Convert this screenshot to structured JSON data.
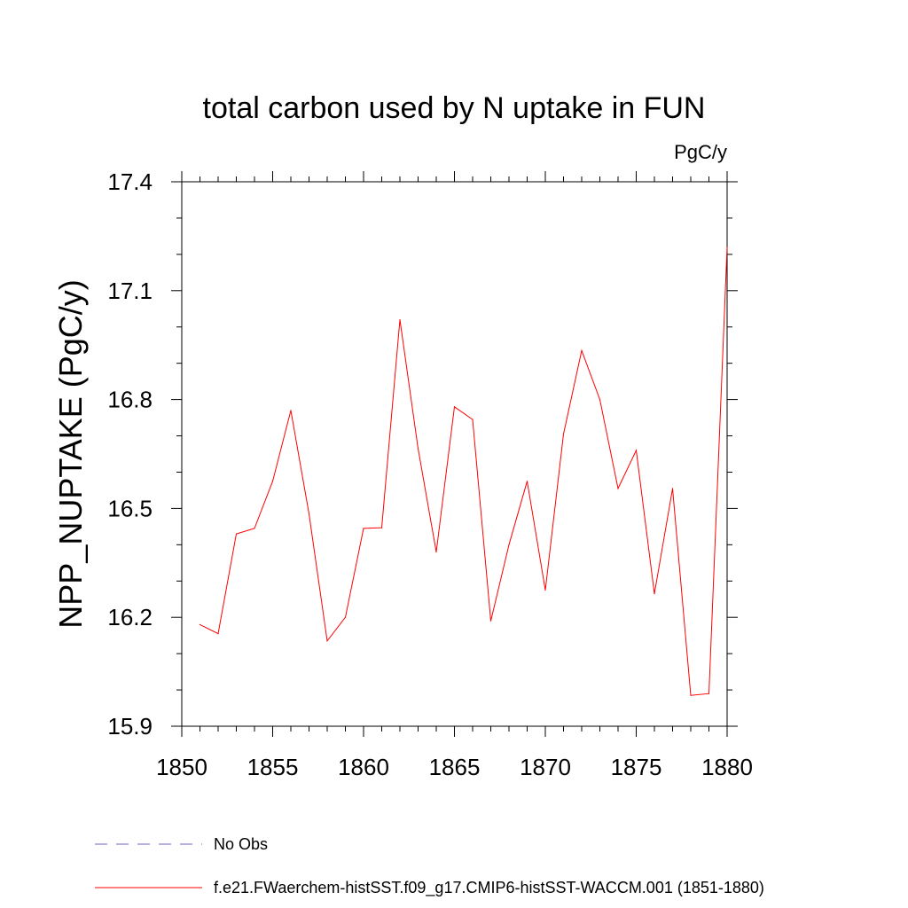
{
  "chart_data": {
    "type": "line",
    "title": "total carbon used by N uptake in FUN",
    "units_label": "PgC/y",
    "ylabel": "NPP_NUPTAKE  (PgC/y)",
    "xlabel": "",
    "xlim": [
      1850,
      1880
    ],
    "ylim": [
      15.9,
      17.4
    ],
    "x_ticks": [
      1850,
      1855,
      1860,
      1865,
      1870,
      1875,
      1880
    ],
    "x_tick_labels": [
      "1850",
      "1855",
      "1860",
      "1865",
      "1870",
      "1875",
      "1880"
    ],
    "y_ticks": [
      15.9,
      16.2,
      16.5,
      16.8,
      17.1,
      17.4
    ],
    "y_tick_labels": [
      "15.9",
      "16.2",
      "16.5",
      "16.8",
      "17.1",
      "17.4"
    ],
    "grid": false,
    "legend_position": "bottom",
    "series": [
      {
        "name": "f.e21.FWaerchem-histSST.f09_g17.CMIP6-histSST-WACCM.001 (1851-1880)",
        "color": "#ff0000",
        "x": [
          1851,
          1852,
          1853,
          1854,
          1855,
          1856,
          1857,
          1858,
          1859,
          1860,
          1861,
          1862,
          1863,
          1864,
          1865,
          1866,
          1867,
          1868,
          1869,
          1870,
          1871,
          1872,
          1873,
          1874,
          1875,
          1876,
          1877,
          1878,
          1879,
          1880
        ],
        "y": [
          16.18,
          16.155,
          16.43,
          16.445,
          16.575,
          16.77,
          16.485,
          16.135,
          16.2,
          16.445,
          16.447,
          17.02,
          16.665,
          16.38,
          16.78,
          16.745,
          16.19,
          16.4,
          16.575,
          16.275,
          16.705,
          16.935,
          16.8,
          16.555,
          16.66,
          16.265,
          16.555,
          15.985,
          15.99,
          17.22
        ]
      }
    ],
    "legend": [
      {
        "label": "No Obs",
        "color": "#6f63c4",
        "style": "dashed"
      },
      {
        "label": "f.e21.FWaerchem-histSST.f09_g17.CMIP6-histSST-WACCM.001 (1851-1880)",
        "color": "#ff0000",
        "style": "solid"
      }
    ]
  }
}
